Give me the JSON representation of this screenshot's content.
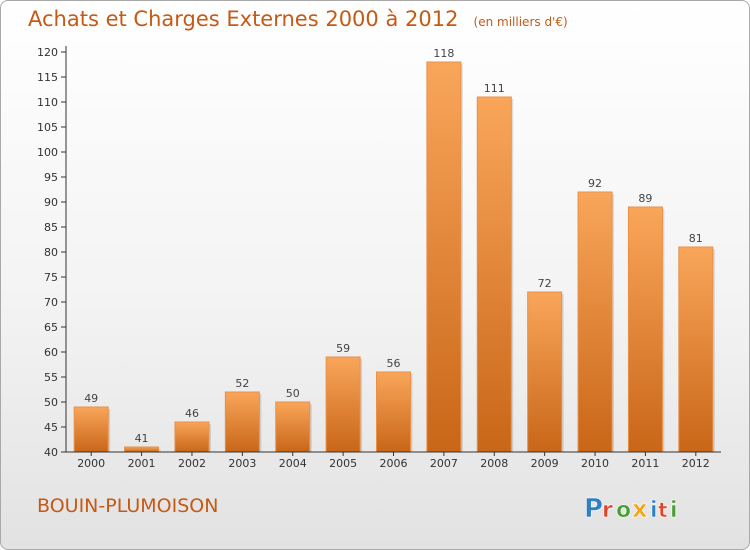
{
  "header": {
    "title": "Achats et Charges Externes 2000 à 2012",
    "unit": "(en milliers d'€)"
  },
  "footer": {
    "town": "BOUIN-PLUMOISON",
    "logo_text": "Proxiti",
    "logo_letter_colors": [
      "#2f7fc4",
      "#e0452a",
      "#4a9d34",
      "#f2a516",
      "#2f7fc4",
      "#e0452a",
      "#4a9d34"
    ]
  },
  "chart_data": {
    "type": "bar",
    "categories": [
      "2000",
      "2001",
      "2002",
      "2003",
      "2004",
      "2005",
      "2006",
      "2007",
      "2008",
      "2009",
      "2010",
      "2011",
      "2012"
    ],
    "values": [
      49,
      41,
      46,
      52,
      50,
      59,
      56,
      118,
      111,
      72,
      92,
      89,
      81
    ],
    "title": "Achats et Charges Externes 2000 à 2012",
    "subtitle": "(en milliers d'€)",
    "xlabel": "",
    "ylabel": "",
    "ylim": [
      40,
      120
    ],
    "yticks": [
      40,
      45,
      50,
      55,
      60,
      65,
      70,
      75,
      80,
      85,
      90,
      95,
      100,
      105,
      110,
      115,
      120
    ],
    "grid": false,
    "bar_color_top": "#f9a65a",
    "bar_color_bottom": "#c96618"
  }
}
